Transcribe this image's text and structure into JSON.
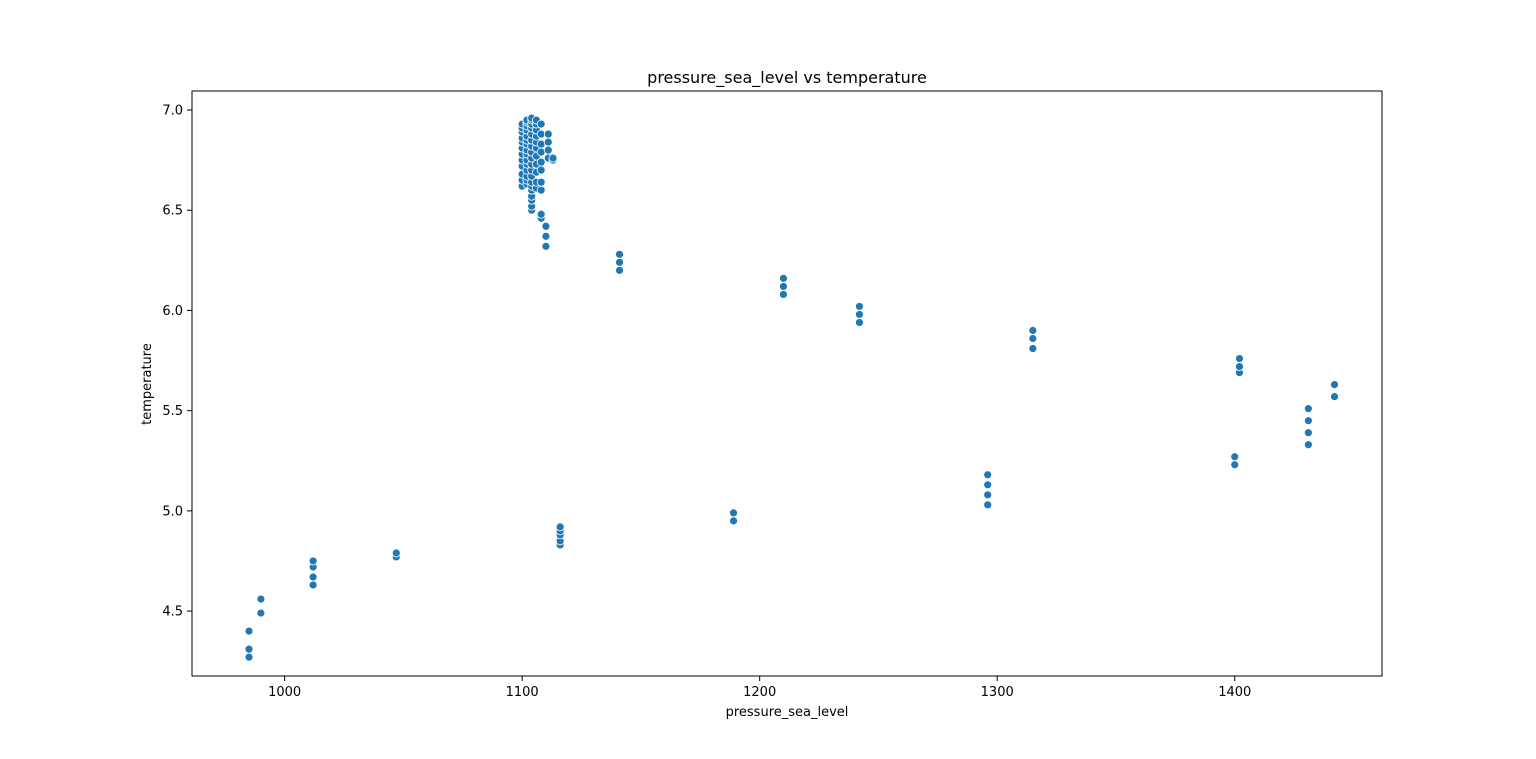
{
  "chart_data": {
    "type": "scatter",
    "title": "pressure_sea_level vs temperature",
    "xlabel": "pressure_sea_level",
    "ylabel": "temperature",
    "xlim": [
      961,
      1462
    ],
    "ylim": [
      4.176,
      7.095
    ],
    "xticks": [
      1000,
      1100,
      1200,
      1300,
      1400
    ],
    "yticks": [
      4.5,
      5.0,
      5.5,
      6.0,
      6.5,
      7.0
    ],
    "grid": false,
    "legend": "none",
    "marker_color": "#1f77b4",
    "series": [
      {
        "x": [
          985,
          985,
          985,
          990,
          990,
          1012,
          1012,
          1012,
          1012,
          1047,
          1047,
          1116,
          1116,
          1116,
          1116,
          1116,
          1189,
          1189,
          1296,
          1296,
          1296,
          1296,
          1400,
          1400,
          1402,
          1402,
          1402,
          1431,
          1431,
          1431,
          1431,
          1442,
          1442,
          1141,
          1141,
          1141,
          1210,
          1210,
          1210,
          1242,
          1242,
          1242,
          1315,
          1315,
          1315,
          1108,
          1108,
          1110,
          1110,
          1110,
          1100,
          1100,
          1100,
          1100,
          1100,
          1100,
          1100,
          1100,
          1100,
          1100,
          1100,
          1100,
          1102,
          1102,
          1102,
          1102,
          1102,
          1102,
          1102,
          1102,
          1102,
          1102,
          1102,
          1102,
          1102,
          1102,
          1102,
          1104,
          1104,
          1104,
          1104,
          1104,
          1104,
          1104,
          1104,
          1104,
          1104,
          1104,
          1104,
          1104,
          1104,
          1104,
          1104,
          1104,
          1104,
          1104,
          1106,
          1106,
          1106,
          1106,
          1106,
          1106,
          1106,
          1106,
          1106,
          1106,
          1106,
          1108,
          1108,
          1108,
          1108,
          1108,
          1108,
          1108,
          1108,
          1111,
          1111,
          1111,
          1111,
          1113,
          1113
        ],
        "y": [
          4.27,
          4.31,
          4.4,
          4.49,
          4.56,
          4.63,
          4.67,
          4.72,
          4.75,
          4.77,
          4.79,
          4.83,
          4.85,
          4.88,
          4.9,
          4.92,
          4.95,
          4.99,
          5.03,
          5.08,
          5.13,
          5.18,
          5.23,
          5.27,
          5.69,
          5.72,
          5.76,
          5.33,
          5.39,
          5.45,
          5.51,
          5.57,
          5.63,
          6.2,
          6.24,
          6.28,
          6.08,
          6.12,
          6.16,
          5.94,
          5.98,
          6.02,
          5.81,
          5.86,
          5.9,
          6.46,
          6.48,
          6.32,
          6.37,
          6.42,
          6.62,
          6.65,
          6.68,
          6.72,
          6.75,
          6.78,
          6.81,
          6.84,
          6.86,
          6.89,
          6.91,
          6.93,
          6.63,
          6.65,
          6.67,
          6.7,
          6.73,
          6.75,
          6.78,
          6.8,
          6.83,
          6.85,
          6.87,
          6.9,
          6.92,
          6.94,
          6.95,
          6.5,
          6.52,
          6.55,
          6.57,
          6.6,
          6.62,
          6.64,
          6.67,
          6.7,
          6.73,
          6.76,
          6.79,
          6.82,
          6.85,
          6.88,
          6.91,
          6.93,
          6.95,
          6.96,
          6.61,
          6.64,
          6.69,
          6.73,
          6.77,
          6.81,
          6.84,
          6.87,
          6.9,
          6.93,
          6.95,
          6.6,
          6.64,
          6.7,
          6.74,
          6.79,
          6.83,
          6.88,
          6.93,
          6.76,
          6.8,
          6.84,
          6.88,
          6.75,
          6.76
        ]
      }
    ]
  }
}
